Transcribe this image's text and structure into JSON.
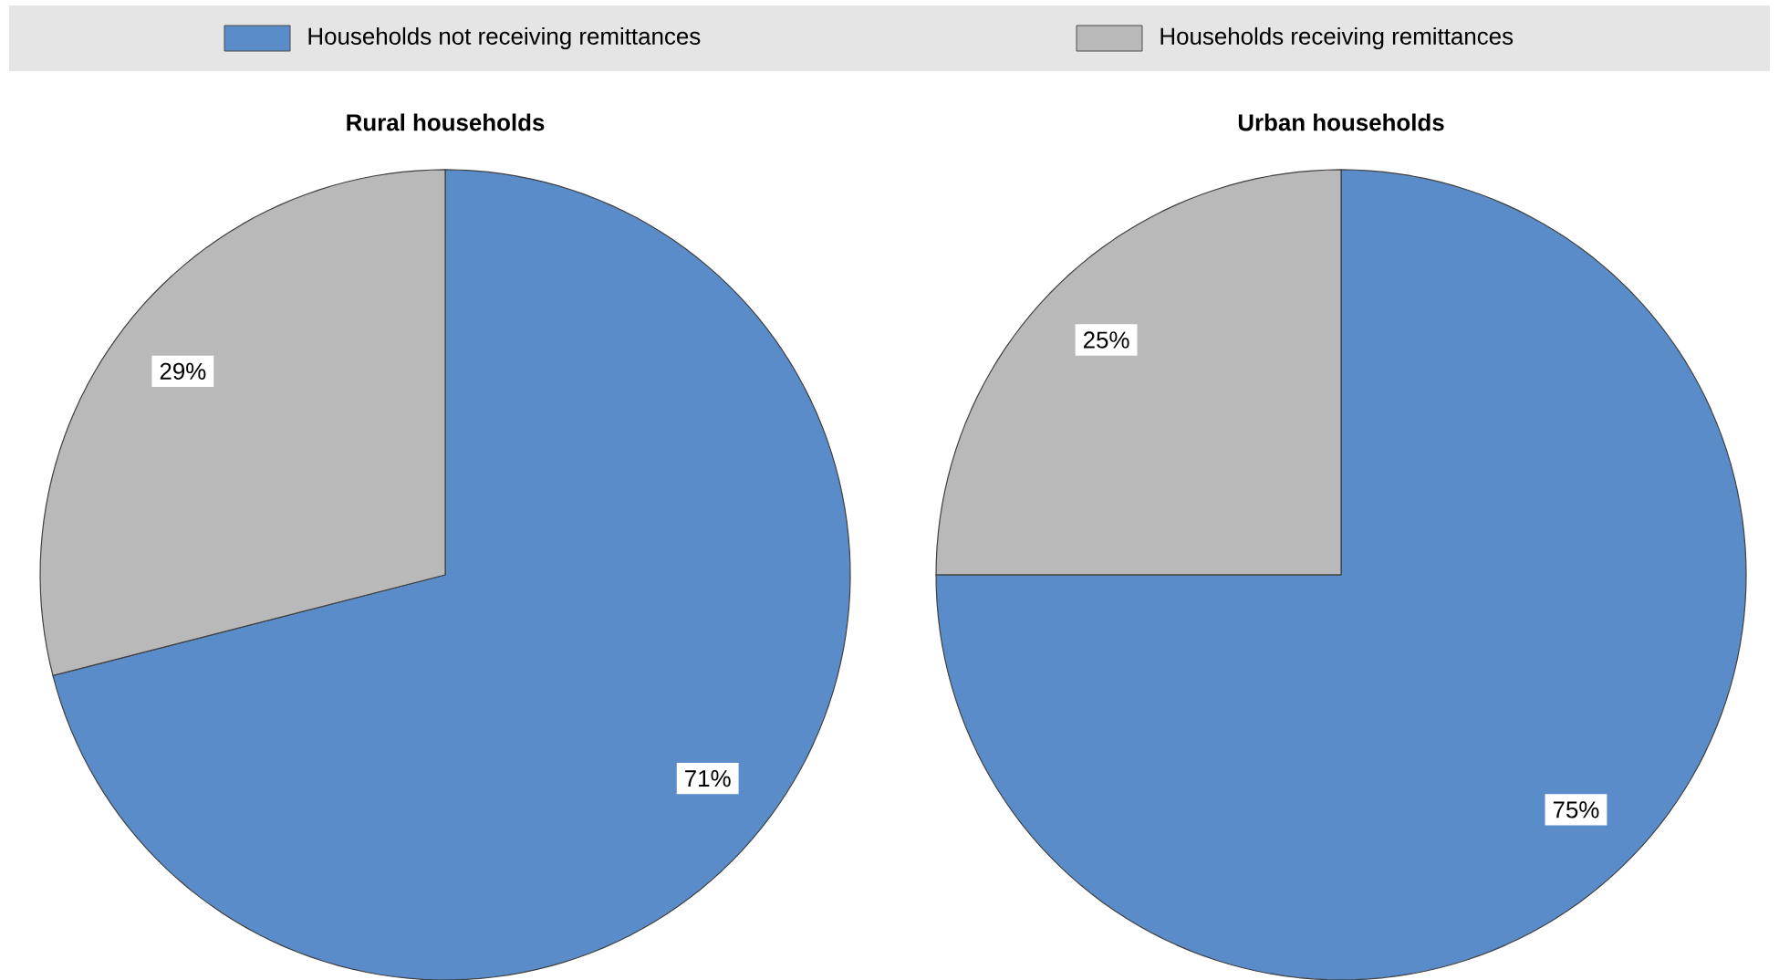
{
  "chart_data": [
    {
      "type": "pie",
      "title": "Rural households",
      "categories": [
        "Households not receiving remittances",
        "Households receiving remittances"
      ],
      "values": [
        71,
        29
      ],
      "value_labels": [
        "71%",
        "29%"
      ],
      "colors": [
        "#5a8cc9",
        "#b9b9b9"
      ],
      "legend": "top"
    },
    {
      "type": "pie",
      "title": "Urban households",
      "categories": [
        null,
        null
      ],
      "values": [
        75,
        25
      ],
      "value_labels": [
        "75%",
        "25%"
      ],
      "colors": [
        "#5a8cc9",
        "#b9b9b9"
      ]
    }
  ]
}
